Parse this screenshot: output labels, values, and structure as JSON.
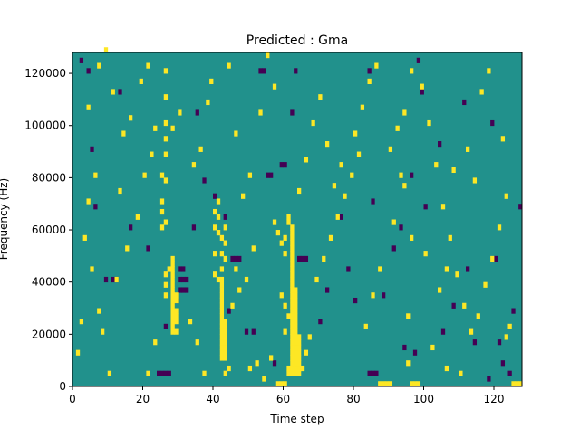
{
  "chart_data": {
    "type": "heatmap",
    "title": "Predicted : Gma",
    "xlabel": "Time step",
    "ylabel": "Frequency (Hz)",
    "xlim": [
      0,
      128
    ],
    "ylim": [
      0,
      128000
    ],
    "xticks": [
      0,
      20,
      40,
      60,
      80,
      100,
      120
    ],
    "yticks": [
      "0",
      "20000",
      "40000",
      "60000",
      "80000",
      "100000",
      "120000"
    ],
    "ytick_values": [
      0,
      20000,
      40000,
      60000,
      80000,
      100000,
      120000
    ],
    "n_time_steps": 128,
    "n_freq_bins": 64,
    "bin_height_hz": 2000,
    "colormap": "viridis",
    "colors": {
      "low": "#440154",
      "mid": "#21918c",
      "high": "#fde725"
    },
    "background_level": "mid",
    "grid": false,
    "cells_low": [
      [
        2,
        62
      ],
      [
        4,
        60
      ],
      [
        13,
        56
      ],
      [
        24,
        2
      ],
      [
        25,
        2
      ],
      [
        26,
        2
      ],
      [
        27,
        2
      ],
      [
        30,
        18
      ],
      [
        30,
        20
      ],
      [
        30,
        22
      ],
      [
        31,
        18
      ],
      [
        31,
        20
      ],
      [
        31,
        22
      ],
      [
        32,
        18
      ],
      [
        32,
        20
      ],
      [
        59,
        42
      ],
      [
        60,
        42
      ],
      [
        64,
        24
      ],
      [
        65,
        24
      ],
      [
        66,
        24
      ],
      [
        84,
        2
      ],
      [
        85,
        2
      ],
      [
        86,
        2
      ],
      [
        55,
        40
      ],
      [
        56,
        40
      ],
      [
        53,
        60
      ],
      [
        54,
        60
      ],
      [
        84,
        60
      ],
      [
        98,
        62
      ],
      [
        111,
        54
      ],
      [
        5,
        45
      ],
      [
        9,
        20
      ],
      [
        11,
        20
      ],
      [
        12,
        20
      ],
      [
        29,
        16
      ],
      [
        34,
        30
      ],
      [
        43,
        32
      ],
      [
        45,
        24
      ],
      [
        46,
        24
      ],
      [
        47,
        24
      ],
      [
        51,
        10
      ],
      [
        72,
        18
      ],
      [
        80,
        16
      ],
      [
        91,
        26
      ],
      [
        97,
        6
      ],
      [
        100,
        34
      ],
      [
        108,
        15
      ],
      [
        114,
        8
      ],
      [
        120,
        24
      ],
      [
        121,
        8
      ],
      [
        122,
        4
      ],
      [
        125,
        14
      ],
      [
        127,
        34
      ],
      [
        70,
        12
      ],
      [
        94,
        7
      ],
      [
        37,
        39
      ],
      [
        63,
        60
      ],
      [
        85,
        35
      ],
      [
        26,
        11
      ],
      [
        44,
        14
      ],
      [
        40,
        36
      ],
      [
        78,
        22
      ],
      [
        99,
        56
      ],
      [
        105,
        10
      ],
      [
        118,
        1
      ],
      [
        16,
        30
      ],
      [
        57,
        4
      ],
      [
        93,
        30
      ],
      [
        104,
        46
      ],
      [
        119,
        50
      ],
      [
        6,
        34
      ],
      [
        21,
        26
      ],
      [
        35,
        52
      ],
      [
        49,
        10
      ],
      [
        62,
        52
      ],
      [
        76,
        32
      ],
      [
        88,
        17
      ],
      [
        96,
        40
      ],
      [
        112,
        22
      ],
      [
        124,
        2
      ]
    ],
    "cells_high": [
      [
        28,
        10
      ],
      [
        29,
        10
      ],
      [
        28,
        11
      ],
      [
        28,
        12
      ],
      [
        29,
        12
      ],
      [
        28,
        13
      ],
      [
        29,
        13
      ],
      [
        28,
        14
      ],
      [
        29,
        14
      ],
      [
        28,
        15
      ],
      [
        28,
        16
      ],
      [
        29,
        16
      ],
      [
        28,
        17
      ],
      [
        29,
        17
      ],
      [
        28,
        18
      ],
      [
        28,
        19
      ],
      [
        28,
        20
      ],
      [
        28,
        21
      ],
      [
        28,
        22
      ],
      [
        28,
        23
      ],
      [
        28,
        24
      ],
      [
        27,
        22
      ],
      [
        26,
        17
      ],
      [
        26,
        19
      ],
      [
        26,
        21
      ],
      [
        25,
        30
      ],
      [
        25,
        35
      ],
      [
        25,
        40
      ],
      [
        26,
        39
      ],
      [
        26,
        44
      ],
      [
        26,
        47
      ],
      [
        26,
        50
      ],
      [
        26,
        55
      ],
      [
        26,
        60
      ],
      [
        26,
        31
      ],
      [
        25,
        33
      ],
      [
        42,
        5
      ],
      [
        43,
        5
      ],
      [
        42,
        6
      ],
      [
        43,
        6
      ],
      [
        42,
        7
      ],
      [
        43,
        7
      ],
      [
        42,
        8
      ],
      [
        43,
        8
      ],
      [
        42,
        9
      ],
      [
        43,
        9
      ],
      [
        42,
        10
      ],
      [
        43,
        10
      ],
      [
        42,
        11
      ],
      [
        43,
        11
      ],
      [
        42,
        12
      ],
      [
        43,
        12
      ],
      [
        42,
        13
      ],
      [
        42,
        14
      ],
      [
        42,
        15
      ],
      [
        42,
        16
      ],
      [
        42,
        17
      ],
      [
        42,
        18
      ],
      [
        42,
        19
      ],
      [
        42,
        20
      ],
      [
        42,
        22
      ],
      [
        42,
        25
      ],
      [
        42,
        28
      ],
      [
        43,
        24
      ],
      [
        43,
        27
      ],
      [
        43,
        30
      ],
      [
        41,
        20
      ],
      [
        40,
        21
      ],
      [
        40,
        25
      ],
      [
        40,
        30
      ],
      [
        41,
        29
      ],
      [
        41,
        32
      ],
      [
        41,
        35
      ],
      [
        40,
        33
      ],
      [
        44,
        3
      ],
      [
        43,
        2
      ],
      [
        45,
        15
      ],
      [
        46,
        22
      ],
      [
        61,
        2
      ],
      [
        62,
        2
      ],
      [
        63,
        2
      ],
      [
        64,
        2
      ],
      [
        61,
        3
      ],
      [
        62,
        3
      ],
      [
        63,
        3
      ],
      [
        64,
        3
      ],
      [
        62,
        4
      ],
      [
        63,
        4
      ],
      [
        64,
        4
      ],
      [
        62,
        5
      ],
      [
        63,
        5
      ],
      [
        64,
        5
      ],
      [
        62,
        6
      ],
      [
        63,
        6
      ],
      [
        64,
        6
      ],
      [
        62,
        7
      ],
      [
        63,
        7
      ],
      [
        64,
        7
      ],
      [
        62,
        8
      ],
      [
        63,
        8
      ],
      [
        64,
        8
      ],
      [
        62,
        9
      ],
      [
        63,
        9
      ],
      [
        64,
        9
      ],
      [
        62,
        10
      ],
      [
        63,
        10
      ],
      [
        62,
        11
      ],
      [
        63,
        11
      ],
      [
        62,
        12
      ],
      [
        63,
        12
      ],
      [
        62,
        13
      ],
      [
        63,
        13
      ],
      [
        62,
        14
      ],
      [
        63,
        14
      ],
      [
        62,
        15
      ],
      [
        63,
        15
      ],
      [
        62,
        16
      ],
      [
        63,
        16
      ],
      [
        62,
        17
      ],
      [
        63,
        17
      ],
      [
        62,
        18
      ],
      [
        63,
        18
      ],
      [
        62,
        19
      ],
      [
        62,
        20
      ],
      [
        62,
        21
      ],
      [
        62,
        22
      ],
      [
        62,
        23
      ],
      [
        62,
        24
      ],
      [
        62,
        25
      ],
      [
        62,
        26
      ],
      [
        62,
        27
      ],
      [
        62,
        28
      ],
      [
        62,
        29
      ],
      [
        62,
        30
      ],
      [
        61,
        31
      ],
      [
        61,
        32
      ],
      [
        60,
        25
      ],
      [
        60,
        28
      ],
      [
        59,
        27
      ],
      [
        58,
        29
      ],
      [
        57,
        31
      ],
      [
        59,
        17
      ],
      [
        60,
        15
      ],
      [
        61,
        13
      ],
      [
        60,
        10
      ],
      [
        65,
        3
      ],
      [
        66,
        6
      ],
      [
        67,
        9
      ],
      [
        21,
        2
      ],
      [
        23,
        8
      ],
      [
        37,
        2
      ],
      [
        50,
        3
      ],
      [
        52,
        4
      ],
      [
        54,
        1
      ],
      [
        56,
        5
      ],
      [
        58,
        0
      ],
      [
        59,
        0
      ],
      [
        60,
        0
      ],
      [
        87,
        0
      ],
      [
        88,
        0
      ],
      [
        89,
        0
      ],
      [
        90,
        0
      ],
      [
        96,
        0
      ],
      [
        97,
        0
      ],
      [
        98,
        0
      ],
      [
        95,
        4
      ],
      [
        106,
        3
      ],
      [
        110,
        2
      ],
      [
        126,
        0
      ],
      [
        127,
        0
      ],
      [
        125,
        0
      ],
      [
        123,
        9
      ],
      [
        124,
        11
      ],
      [
        115,
        13
      ],
      [
        100,
        25
      ],
      [
        96,
        28
      ],
      [
        94,
        38
      ],
      [
        93,
        40
      ],
      [
        10,
        2
      ],
      [
        8,
        10
      ],
      [
        7,
        14
      ],
      [
        5,
        22
      ],
      [
        3,
        28
      ],
      [
        12,
        20
      ],
      [
        15,
        26
      ],
      [
        18,
        32
      ],
      [
        20,
        40
      ],
      [
        22,
        44
      ],
      [
        4,
        53
      ],
      [
        7,
        61
      ],
      [
        9,
        64
      ],
      [
        11,
        56
      ],
      [
        14,
        48
      ],
      [
        16,
        51
      ],
      [
        19,
        58
      ],
      [
        21,
        61
      ],
      [
        23,
        49
      ],
      [
        13,
        37
      ],
      [
        28,
        49
      ],
      [
        30,
        52
      ],
      [
        34,
        42
      ],
      [
        36,
        45
      ],
      [
        38,
        54
      ],
      [
        39,
        58
      ],
      [
        44,
        61
      ],
      [
        46,
        48
      ],
      [
        48,
        36
      ],
      [
        50,
        40
      ],
      [
        53,
        52
      ],
      [
        55,
        63
      ],
      [
        57,
        57
      ],
      [
        64,
        37
      ],
      [
        66,
        43
      ],
      [
        68,
        50
      ],
      [
        70,
        55
      ],
      [
        72,
        46
      ],
      [
        74,
        38
      ],
      [
        76,
        42
      ],
      [
        80,
        48
      ],
      [
        82,
        53
      ],
      [
        84,
        58
      ],
      [
        86,
        61
      ],
      [
        90,
        45
      ],
      [
        92,
        49
      ],
      [
        94,
        52
      ],
      [
        96,
        60
      ],
      [
        99,
        57
      ],
      [
        101,
        50
      ],
      [
        103,
        42
      ],
      [
        105,
        34
      ],
      [
        107,
        28
      ],
      [
        109,
        21
      ],
      [
        111,
        15
      ],
      [
        113,
        10
      ],
      [
        117,
        19
      ],
      [
        119,
        24
      ],
      [
        121,
        30
      ],
      [
        123,
        36
      ],
      [
        1,
        6
      ],
      [
        2,
        12
      ],
      [
        4,
        35
      ],
      [
        6,
        40
      ],
      [
        35,
        8
      ],
      [
        33,
        12
      ],
      [
        47,
        18
      ],
      [
        49,
        20
      ],
      [
        51,
        26
      ],
      [
        69,
        20
      ],
      [
        71,
        24
      ],
      [
        73,
        28
      ],
      [
        75,
        32
      ],
      [
        77,
        36
      ],
      [
        79,
        40
      ],
      [
        81,
        44
      ],
      [
        83,
        11
      ],
      [
        85,
        17
      ],
      [
        87,
        22
      ],
      [
        91,
        31
      ],
      [
        95,
        13
      ],
      [
        102,
        7
      ],
      [
        104,
        18
      ],
      [
        106,
        22
      ],
      [
        108,
        41
      ],
      [
        112,
        45
      ],
      [
        114,
        39
      ],
      [
        116,
        56
      ],
      [
        118,
        60
      ],
      [
        122,
        47
      ]
    ]
  }
}
